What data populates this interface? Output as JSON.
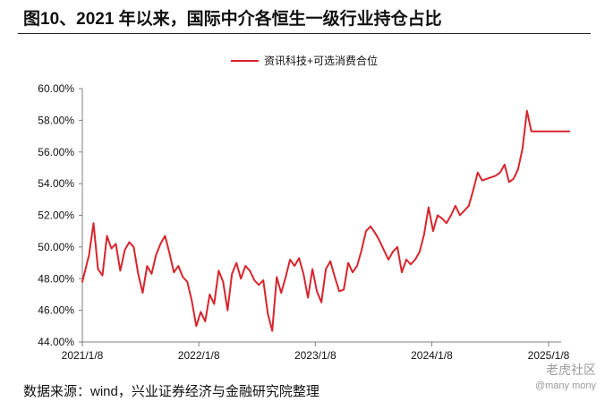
{
  "header": {
    "title": "图10、2021 年以来，国际中介各恒生一级行业持仓占比"
  },
  "footer": {
    "source": "数据来源：wind，兴业证券经济与金融研究院整理"
  },
  "watermark": {
    "line1": "老虎社区",
    "line2": "@many mony"
  },
  "colors": {
    "series": "#d7252d",
    "axis": "#7f7f7f",
    "text": "#111111"
  },
  "chart_data": {
    "type": "line",
    "title": "",
    "xlabel": "",
    "ylabel": "",
    "ylim": [
      44,
      60
    ],
    "yticks": [
      44,
      46,
      48,
      50,
      52,
      54,
      56,
      58,
      60
    ],
    "ytick_labels": [
      "44.00%",
      "46.00%",
      "48.00%",
      "50.00%",
      "52.00%",
      "54.00%",
      "56.00%",
      "58.00%",
      "60.00%"
    ],
    "xlim": [
      "2021-01-08",
      "2025-03-14"
    ],
    "xticks": [
      "2021-01-08",
      "2022-01-08",
      "2023-01-08",
      "2024-01-08",
      "2025-01-08"
    ],
    "xtick_labels": [
      "2021/1/8",
      "2022/1/8",
      "2023/1/8",
      "2024/1/8",
      "2025/1/8"
    ],
    "grid": false,
    "legend_position": "top-center",
    "series": [
      {
        "name": "资讯科技+可选消费合位",
        "x": [
          "2021-01-08",
          "2021-01-29",
          "2021-02-12",
          "2021-02-26",
          "2021-03-12",
          "2021-03-26",
          "2021-04-09",
          "2021-04-23",
          "2021-05-07",
          "2021-05-21",
          "2021-06-04",
          "2021-06-18",
          "2021-07-02",
          "2021-07-16",
          "2021-07-30",
          "2021-08-13",
          "2021-08-27",
          "2021-09-10",
          "2021-09-24",
          "2021-10-08",
          "2021-10-22",
          "2021-11-05",
          "2021-11-19",
          "2021-12-03",
          "2021-12-17",
          "2021-12-31",
          "2022-01-14",
          "2022-01-28",
          "2022-02-11",
          "2022-02-25",
          "2022-03-11",
          "2022-03-25",
          "2022-04-08",
          "2022-04-22",
          "2022-05-06",
          "2022-05-20",
          "2022-06-03",
          "2022-06-17",
          "2022-07-01",
          "2022-07-15",
          "2022-07-29",
          "2022-08-12",
          "2022-08-26",
          "2022-09-09",
          "2022-09-23",
          "2022-10-07",
          "2022-10-21",
          "2022-11-04",
          "2022-11-18",
          "2022-12-02",
          "2022-12-16",
          "2022-12-30",
          "2023-01-13",
          "2023-01-27",
          "2023-02-10",
          "2023-02-24",
          "2023-03-10",
          "2023-03-24",
          "2023-04-07",
          "2023-04-21",
          "2023-05-05",
          "2023-05-19",
          "2023-06-02",
          "2023-06-16",
          "2023-06-30",
          "2023-07-14",
          "2023-07-28",
          "2023-08-11",
          "2023-08-25",
          "2023-09-08",
          "2023-09-22",
          "2023-10-06",
          "2023-10-20",
          "2023-11-03",
          "2023-11-17",
          "2023-12-01",
          "2023-12-15",
          "2023-12-29",
          "2024-01-12",
          "2024-01-26",
          "2024-02-09",
          "2024-02-23",
          "2024-03-08",
          "2024-03-22",
          "2024-04-05",
          "2024-04-19",
          "2024-05-03",
          "2024-05-17",
          "2024-05-31",
          "2024-06-14",
          "2024-06-28",
          "2024-07-12",
          "2024-07-26",
          "2024-08-09",
          "2024-08-23",
          "2024-09-06",
          "2024-09-20",
          "2024-10-04",
          "2024-10-18",
          "2024-11-01",
          "2024-11-15",
          "2024-11-29",
          "2024-12-13",
          "2024-12-27",
          "2025-01-10",
          "2025-01-24",
          "2025-02-07",
          "2025-02-21",
          "2025-03-07",
          "2025-03-14"
        ],
        "values": [
          47.8,
          49.5,
          51.5,
          48.6,
          48.2,
          50.7,
          49.9,
          50.2,
          48.5,
          49.8,
          50.3,
          50.0,
          48.3,
          47.1,
          48.8,
          48.3,
          49.5,
          50.2,
          50.7,
          49.6,
          48.4,
          48.8,
          48.1,
          47.8,
          46.6,
          45.0,
          45.9,
          45.3,
          47.0,
          46.4,
          48.5,
          47.8,
          46.0,
          48.3,
          49.0,
          48.0,
          48.8,
          48.5,
          47.9,
          47.6,
          47.9,
          45.8,
          44.7,
          48.1,
          47.1,
          48.1,
          49.2,
          48.8,
          49.3,
          48.3,
          46.8,
          48.6,
          47.2,
          46.5,
          48.6,
          49.1,
          48.1,
          47.2,
          47.3,
          49.0,
          48.4,
          48.8,
          49.8,
          51.0,
          51.3,
          50.9,
          50.4,
          49.8,
          49.2,
          49.7,
          50.0,
          48.4,
          49.2,
          48.9,
          49.2,
          49.7,
          50.8,
          52.5,
          51.0,
          52.0,
          51.8,
          51.5,
          52.0,
          52.6,
          52.0,
          52.3,
          52.6,
          53.6,
          54.7,
          54.2,
          54.3,
          54.4,
          54.5,
          54.7,
          55.2,
          54.1,
          54.3,
          54.9,
          56.2,
          58.6,
          57.3,
          57.3,
          57.3,
          57.3,
          57.3,
          57.3,
          57.3,
          57.3,
          57.3,
          57.3
        ]
      }
    ]
  }
}
